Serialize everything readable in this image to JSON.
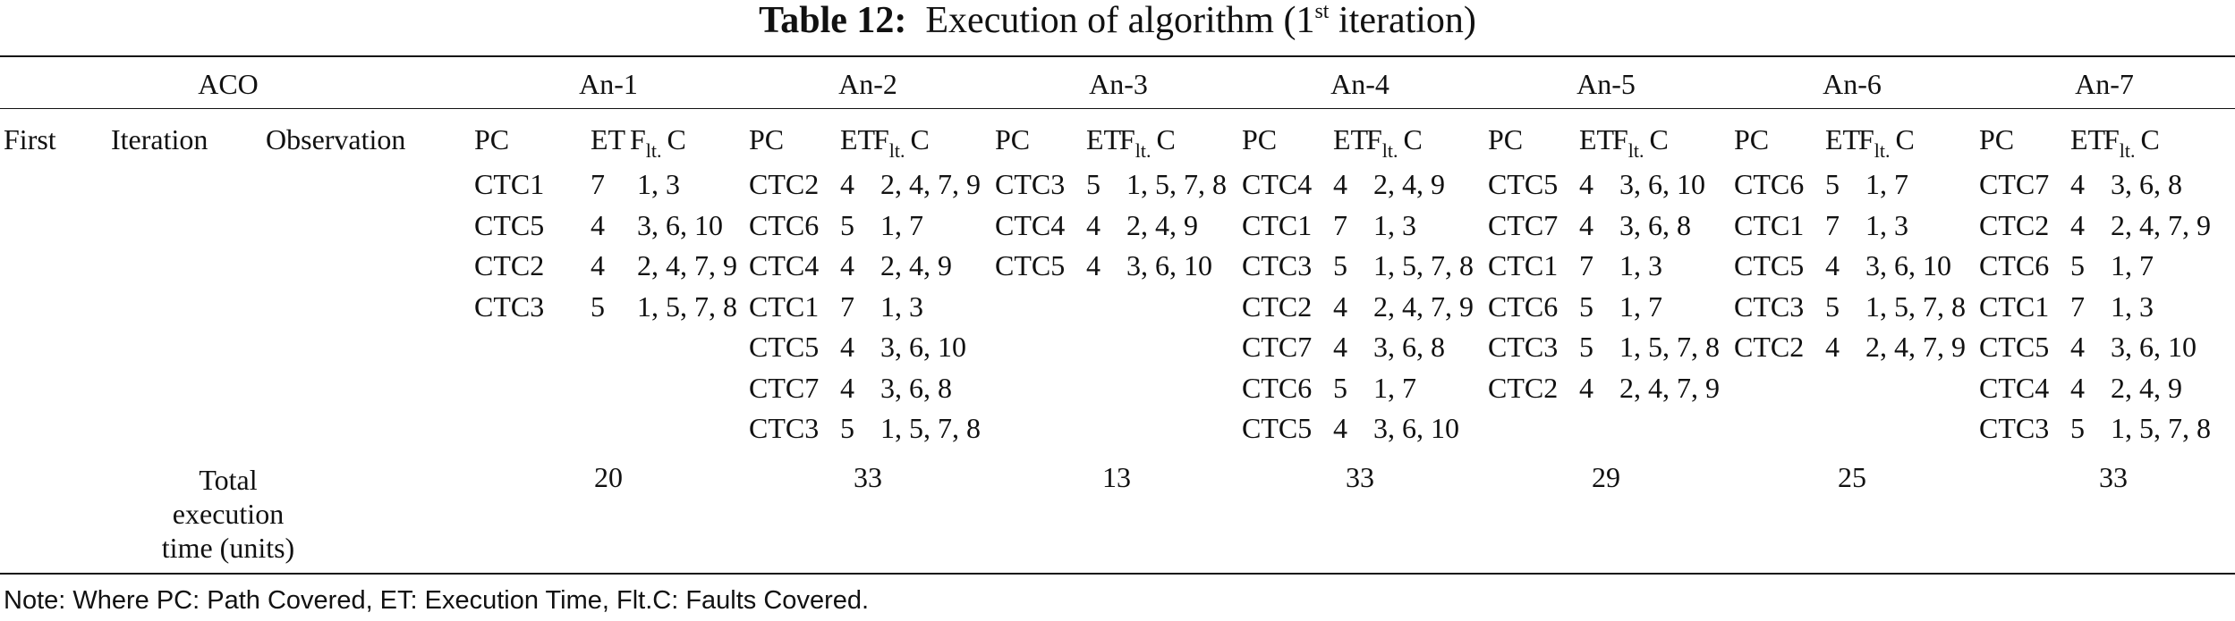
{
  "title": {
    "label": "Table 12:",
    "text_before": "Execution of algorithm (1",
    "sup": "st",
    "text_after": " iteration)"
  },
  "header": {
    "aco": "ACO",
    "ants": [
      "An-1",
      "An-2",
      "An-3",
      "An-4",
      "An-5",
      "An-6",
      "An-7"
    ]
  },
  "row_labels": {
    "first": "First",
    "iteration": "Iteration",
    "observation": "Observation"
  },
  "col_headers": {
    "pc": "PC",
    "et": "ET",
    "flt_f": "F",
    "flt_sub": "lt.",
    "flt_c": "C"
  },
  "ants": [
    {
      "rows": [
        {
          "pc": "CTC1",
          "et": "7",
          "fc": "1, 3"
        },
        {
          "pc": "CTC5",
          "et": "4",
          "fc": "3, 6, 10"
        },
        {
          "pc": "CTC2",
          "et": "4",
          "fc": "2, 4, 7, 9"
        },
        {
          "pc": "CTC3",
          "et": "5",
          "fc": "1, 5, 7, 8"
        }
      ],
      "total": "20"
    },
    {
      "rows": [
        {
          "pc": "CTC2",
          "et": "4",
          "fc": "2, 4, 7, 9"
        },
        {
          "pc": "CTC6",
          "et": "5",
          "fc": "1, 7"
        },
        {
          "pc": "CTC4",
          "et": "4",
          "fc": "2, 4, 9"
        },
        {
          "pc": "CTC1",
          "et": "7",
          "fc": "1, 3"
        },
        {
          "pc": "CTC5",
          "et": "4",
          "fc": "3, 6, 10"
        },
        {
          "pc": "CTC7",
          "et": "4",
          "fc": "3, 6, 8"
        },
        {
          "pc": "CTC3",
          "et": "5",
          "fc": "1, 5, 7, 8"
        }
      ],
      "total": "33"
    },
    {
      "rows": [
        {
          "pc": "CTC3",
          "et": "5",
          "fc": "1, 5, 7, 8"
        },
        {
          "pc": "CTC4",
          "et": "4",
          "fc": "2, 4, 9"
        },
        {
          "pc": "CTC5",
          "et": "4",
          "fc": "3, 6, 10"
        }
      ],
      "total": "13"
    },
    {
      "rows": [
        {
          "pc": "CTC4",
          "et": "4",
          "fc": "2, 4, 9"
        },
        {
          "pc": "CTC1",
          "et": "7",
          "fc": "1, 3"
        },
        {
          "pc": "CTC3",
          "et": "5",
          "fc": "1, 5, 7, 8"
        },
        {
          "pc": "CTC2",
          "et": "4",
          "fc": "2, 4, 7, 9"
        },
        {
          "pc": "CTC7",
          "et": "4",
          "fc": "3, 6, 8"
        },
        {
          "pc": "CTC6",
          "et": "5",
          "fc": "1, 7"
        },
        {
          "pc": "CTC5",
          "et": "4",
          "fc": "3, 6, 10"
        }
      ],
      "total": "33"
    },
    {
      "rows": [
        {
          "pc": "CTC5",
          "et": "4",
          "fc": "3, 6, 10"
        },
        {
          "pc": "CTC7",
          "et": "4",
          "fc": "3, 6, 8"
        },
        {
          "pc": "CTC1",
          "et": "7",
          "fc": "1, 3"
        },
        {
          "pc": "CTC6",
          "et": "5",
          "fc": "1, 7"
        },
        {
          "pc": "CTC3",
          "et": "5",
          "fc": "1, 5, 7, 8"
        },
        {
          "pc": "CTC2",
          "et": "4",
          "fc": "2, 4, 7, 9"
        }
      ],
      "total": "29"
    },
    {
      "rows": [
        {
          "pc": "CTC6",
          "et": "5",
          "fc": "1, 7"
        },
        {
          "pc": "CTC1",
          "et": "7",
          "fc": "1, 3"
        },
        {
          "pc": "CTC5",
          "et": "4",
          "fc": "3, 6, 10"
        },
        {
          "pc": "CTC3",
          "et": "5",
          "fc": "1, 5, 7, 8"
        },
        {
          "pc": "CTC2",
          "et": "4",
          "fc": "2, 4, 7, 9"
        }
      ],
      "total": "25"
    },
    {
      "rows": [
        {
          "pc": "CTC7",
          "et": "4",
          "fc": "3, 6, 8"
        },
        {
          "pc": "CTC2",
          "et": "4",
          "fc": "2, 4, 7, 9"
        },
        {
          "pc": "CTC6",
          "et": "5",
          "fc": "1, 7"
        },
        {
          "pc": "CTC1",
          "et": "7",
          "fc": "1, 3"
        },
        {
          "pc": "CTC5",
          "et": "4",
          "fc": "3, 6, 10"
        },
        {
          "pc": "CTC4",
          "et": "4",
          "fc": "2, 4, 9"
        },
        {
          "pc": "CTC3",
          "et": "5",
          "fc": "1, 5, 7, 8"
        }
      ],
      "total": "33"
    }
  ],
  "total_label": [
    "Total",
    "execution",
    "time (units)"
  ],
  "note": "Note: Where PC: Path Covered, ET: Execution Time, Flt.C: Faults Covered."
}
